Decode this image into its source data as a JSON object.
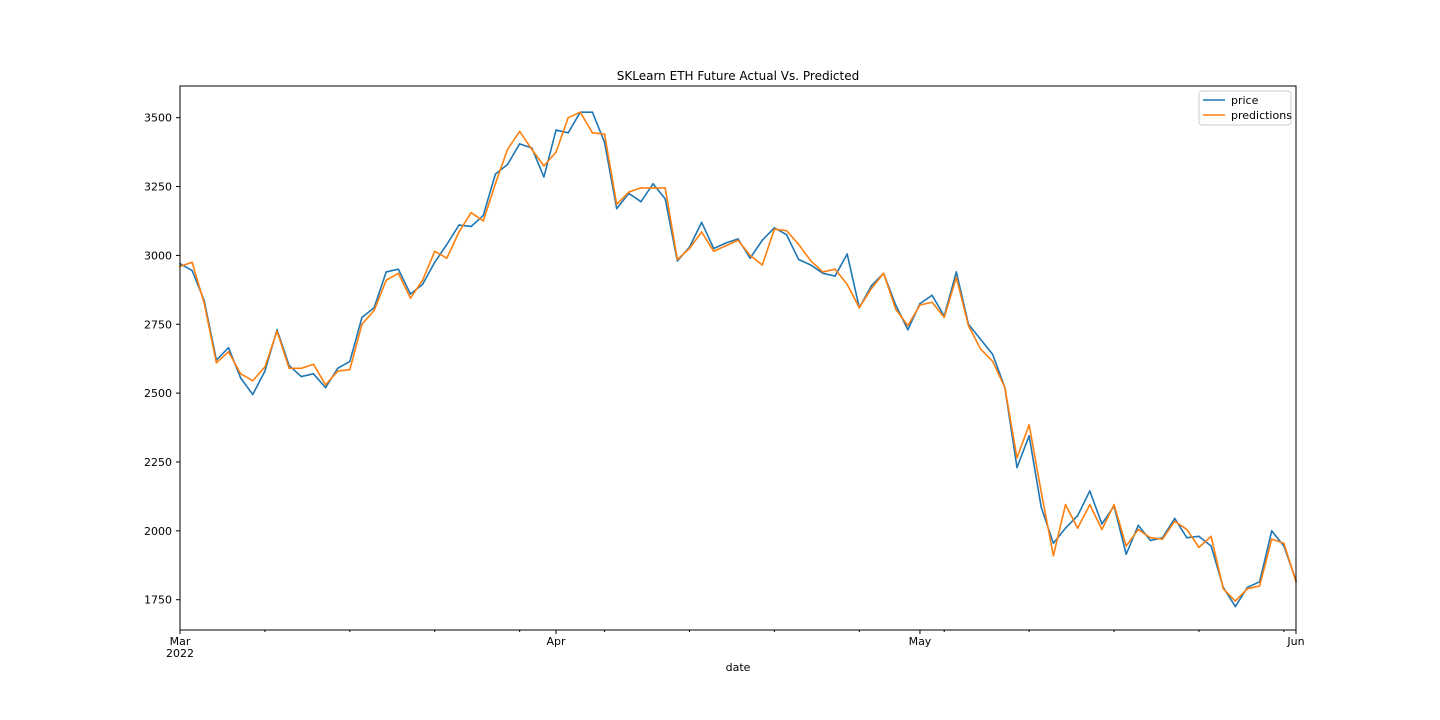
{
  "chart_data": {
    "type": "line",
    "title": "SKLearn ETH Future Actual Vs. Predicted",
    "xlabel": "date",
    "ylabel": "",
    "x_start": "2022-03-01",
    "x_end": "2022-06-01",
    "ylim": [
      1640,
      3615
    ],
    "yticks": [
      1750,
      2000,
      2250,
      2500,
      2750,
      3000,
      3250,
      3500
    ],
    "xticks": [
      {
        "date": "2022-03-01",
        "label": "Mar",
        "sublabel": "2022"
      },
      {
        "date": "2022-04-01",
        "label": "Apr",
        "sublabel": ""
      },
      {
        "date": "2022-05-01",
        "label": "May",
        "sublabel": ""
      },
      {
        "date": "2022-06-01",
        "label": "Jun",
        "sublabel": ""
      }
    ],
    "minor_ticks": [
      "2022-03-08",
      "2022-03-15",
      "2022-03-22",
      "2022-03-29",
      "2022-04-05",
      "2022-04-12",
      "2022-04-19",
      "2022-04-26",
      "2022-05-03",
      "2022-05-10",
      "2022-05-17",
      "2022-05-24",
      "2022-05-31"
    ],
    "grid": false,
    "legend": "top-right",
    "series": [
      {
        "name": "price",
        "color": "#1f77b4",
        "points": [
          [
            "2022-03-01",
            2970
          ],
          [
            "2022-03-02",
            2945
          ],
          [
            "2022-03-03",
            2835
          ],
          [
            "2022-03-04",
            2620
          ],
          [
            "2022-03-05",
            2665
          ],
          [
            "2022-03-06",
            2555
          ],
          [
            "2022-03-07",
            2495
          ],
          [
            "2022-03-08",
            2580
          ],
          [
            "2022-03-09",
            2730
          ],
          [
            "2022-03-10",
            2600
          ],
          [
            "2022-03-11",
            2560
          ],
          [
            "2022-03-12",
            2570
          ],
          [
            "2022-03-13",
            2520
          ],
          [
            "2022-03-14",
            2590
          ],
          [
            "2022-03-15",
            2615
          ],
          [
            "2022-03-16",
            2775
          ],
          [
            "2022-03-17",
            2810
          ],
          [
            "2022-03-18",
            2940
          ],
          [
            "2022-03-19",
            2950
          ],
          [
            "2022-03-20",
            2860
          ],
          [
            "2022-03-21",
            2895
          ],
          [
            "2022-03-22",
            2975
          ],
          [
            "2022-03-23",
            3040
          ],
          [
            "2022-03-24",
            3110
          ],
          [
            "2022-03-25",
            3105
          ],
          [
            "2022-03-26",
            3145
          ],
          [
            "2022-03-27",
            3295
          ],
          [
            "2022-03-28",
            3330
          ],
          [
            "2022-03-29",
            3405
          ],
          [
            "2022-03-30",
            3390
          ],
          [
            "2022-03-31",
            3285
          ],
          [
            "2022-04-01",
            3455
          ],
          [
            "2022-04-02",
            3445
          ],
          [
            "2022-04-03",
            3520
          ],
          [
            "2022-04-04",
            3520
          ],
          [
            "2022-04-05",
            3410
          ],
          [
            "2022-04-06",
            3170
          ],
          [
            "2022-04-07",
            3225
          ],
          [
            "2022-04-08",
            3195
          ],
          [
            "2022-04-09",
            3260
          ],
          [
            "2022-04-10",
            3205
          ],
          [
            "2022-04-11",
            2980
          ],
          [
            "2022-04-12",
            3030
          ],
          [
            "2022-04-13",
            3120
          ],
          [
            "2022-04-14",
            3025
          ],
          [
            "2022-04-15",
            3045
          ],
          [
            "2022-04-16",
            3060
          ],
          [
            "2022-04-17",
            2990
          ],
          [
            "2022-04-18",
            3055
          ],
          [
            "2022-04-19",
            3100
          ],
          [
            "2022-04-20",
            3075
          ],
          [
            "2022-04-21",
            2985
          ],
          [
            "2022-04-22",
            2965
          ],
          [
            "2022-04-23",
            2935
          ],
          [
            "2022-04-24",
            2925
          ],
          [
            "2022-04-25",
            3005
          ],
          [
            "2022-04-26",
            2810
          ],
          [
            "2022-04-27",
            2890
          ],
          [
            "2022-04-28",
            2935
          ],
          [
            "2022-04-29",
            2820
          ],
          [
            "2022-04-30",
            2730
          ],
          [
            "2022-05-01",
            2825
          ],
          [
            "2022-05-02",
            2855
          ],
          [
            "2022-05-03",
            2780
          ],
          [
            "2022-05-04",
            2940
          ],
          [
            "2022-05-05",
            2750
          ],
          [
            "2022-05-06",
            2695
          ],
          [
            "2022-05-07",
            2640
          ],
          [
            "2022-05-08",
            2520
          ],
          [
            "2022-05-09",
            2230
          ],
          [
            "2022-05-10",
            2345
          ],
          [
            "2022-05-11",
            2085
          ],
          [
            "2022-05-12",
            1955
          ],
          [
            "2022-05-13",
            2010
          ],
          [
            "2022-05-14",
            2055
          ],
          [
            "2022-05-15",
            2145
          ],
          [
            "2022-05-16",
            2025
          ],
          [
            "2022-05-17",
            2090
          ],
          [
            "2022-05-18",
            1915
          ],
          [
            "2022-05-19",
            2020
          ],
          [
            "2022-05-20",
            1965
          ],
          [
            "2022-05-21",
            1975
          ],
          [
            "2022-05-22",
            2045
          ],
          [
            "2022-05-23",
            1975
          ],
          [
            "2022-05-24",
            1980
          ],
          [
            "2022-05-25",
            1945
          ],
          [
            "2022-05-26",
            1795
          ],
          [
            "2022-05-27",
            1725
          ],
          [
            "2022-05-28",
            1795
          ],
          [
            "2022-05-29",
            1815
          ],
          [
            "2022-05-30",
            2000
          ],
          [
            "2022-05-31",
            1945
          ],
          [
            "2022-06-01",
            1820
          ]
        ]
      },
      {
        "name": "predictions",
        "color": "#ff7f0e",
        "points": [
          [
            "2022-03-01",
            2960
          ],
          [
            "2022-03-02",
            2975
          ],
          [
            "2022-03-03",
            2825
          ],
          [
            "2022-03-04",
            2610
          ],
          [
            "2022-03-05",
            2650
          ],
          [
            "2022-03-06",
            2570
          ],
          [
            "2022-03-07",
            2545
          ],
          [
            "2022-03-08",
            2595
          ],
          [
            "2022-03-09",
            2725
          ],
          [
            "2022-03-10",
            2590
          ],
          [
            "2022-03-11",
            2590
          ],
          [
            "2022-03-12",
            2605
          ],
          [
            "2022-03-13",
            2530
          ],
          [
            "2022-03-14",
            2580
          ],
          [
            "2022-03-15",
            2585
          ],
          [
            "2022-03-16",
            2750
          ],
          [
            "2022-03-17",
            2800
          ],
          [
            "2022-03-18",
            2910
          ],
          [
            "2022-03-19",
            2935
          ],
          [
            "2022-03-20",
            2845
          ],
          [
            "2022-03-21",
            2910
          ],
          [
            "2022-03-22",
            3015
          ],
          [
            "2022-03-23",
            2990
          ],
          [
            "2022-03-24",
            3085
          ],
          [
            "2022-03-25",
            3155
          ],
          [
            "2022-03-26",
            3125
          ],
          [
            "2022-03-27",
            3260
          ],
          [
            "2022-03-28",
            3385
          ],
          [
            "2022-03-29",
            3450
          ],
          [
            "2022-03-30",
            3385
          ],
          [
            "2022-03-31",
            3325
          ],
          [
            "2022-04-01",
            3375
          ],
          [
            "2022-04-02",
            3500
          ],
          [
            "2022-04-03",
            3520
          ],
          [
            "2022-04-04",
            3445
          ],
          [
            "2022-04-05",
            3440
          ],
          [
            "2022-04-06",
            3185
          ],
          [
            "2022-04-07",
            3230
          ],
          [
            "2022-04-08",
            3245
          ],
          [
            "2022-04-09",
            3245
          ],
          [
            "2022-04-10",
            3245
          ],
          [
            "2022-04-11",
            2985
          ],
          [
            "2022-04-12",
            3025
          ],
          [
            "2022-04-13",
            3085
          ],
          [
            "2022-04-14",
            3015
          ],
          [
            "2022-04-15",
            3035
          ],
          [
            "2022-04-16",
            3055
          ],
          [
            "2022-04-17",
            3000
          ],
          [
            "2022-04-18",
            2965
          ],
          [
            "2022-04-19",
            3095
          ],
          [
            "2022-04-20",
            3090
          ],
          [
            "2022-04-21",
            3040
          ],
          [
            "2022-04-22",
            2980
          ],
          [
            "2022-04-23",
            2940
          ],
          [
            "2022-04-24",
            2950
          ],
          [
            "2022-04-25",
            2895
          ],
          [
            "2022-04-26",
            2810
          ],
          [
            "2022-04-27",
            2880
          ],
          [
            "2022-04-28",
            2935
          ],
          [
            "2022-04-29",
            2805
          ],
          [
            "2022-04-30",
            2745
          ],
          [
            "2022-05-01",
            2820
          ],
          [
            "2022-05-02",
            2830
          ],
          [
            "2022-05-03",
            2775
          ],
          [
            "2022-05-04",
            2920
          ],
          [
            "2022-05-05",
            2745
          ],
          [
            "2022-05-06",
            2660
          ],
          [
            "2022-05-07",
            2615
          ],
          [
            "2022-05-08",
            2520
          ],
          [
            "2022-05-09",
            2265
          ],
          [
            "2022-05-10",
            2385
          ],
          [
            "2022-05-11",
            2140
          ],
          [
            "2022-05-12",
            1910
          ],
          [
            "2022-05-13",
            2095
          ],
          [
            "2022-05-14",
            2010
          ],
          [
            "2022-05-15",
            2095
          ],
          [
            "2022-05-16",
            2005
          ],
          [
            "2022-05-17",
            2095
          ],
          [
            "2022-05-18",
            1945
          ],
          [
            "2022-05-19",
            2005
          ],
          [
            "2022-05-20",
            1975
          ],
          [
            "2022-05-21",
            1970
          ],
          [
            "2022-05-22",
            2035
          ],
          [
            "2022-05-23",
            2005
          ],
          [
            "2022-05-24",
            1940
          ],
          [
            "2022-05-25",
            1980
          ],
          [
            "2022-05-26",
            1790
          ],
          [
            "2022-05-27",
            1745
          ],
          [
            "2022-05-28",
            1790
          ],
          [
            "2022-05-29",
            1800
          ],
          [
            "2022-05-30",
            1970
          ],
          [
            "2022-05-31",
            1955
          ],
          [
            "2022-06-01",
            1815
          ]
        ]
      }
    ]
  }
}
